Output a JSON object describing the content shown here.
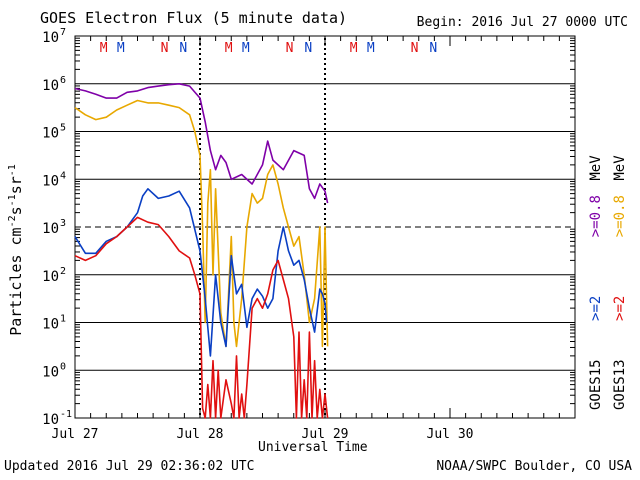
{
  "title": "GOES Electron Flux (5 minute data)",
  "begin_label": "Begin: 2016 Jul 27 0000 UTC",
  "updated_label": "Updated 2016 Jul 29 02:36:02 UTC",
  "credit": "NOAA/SWPC Boulder, CO USA",
  "colors": {
    "goes15_08": "#7f00a8",
    "goes13_08": "#e8a800",
    "goes15_2": "#0a3fc4",
    "goes13_2": "#e01010",
    "marker_m": "#e01010",
    "marker_n_red": "#e01010",
    "marker_blue": "#0a3fc4"
  },
  "chart_data": {
    "type": "line",
    "title": "GOES Electron Flux (5 minute data)",
    "xlabel": "Universal Time",
    "ylabel_base": "Particles cm",
    "ylabel_exps": [
      "-2",
      "-1",
      "-1"
    ],
    "ylabel_units": [
      "s",
      "sr"
    ],
    "y_scale": "log",
    "ylim_exp": [
      -1,
      7
    ],
    "xlim_hours": [
      0,
      96
    ],
    "x_ticks": [
      {
        "label": "Jul 27",
        "hours": 0
      },
      {
        "label": "Jul 28",
        "hours": 24
      },
      {
        "label": "Jul 29",
        "hours": 48
      },
      {
        "label": "Jul 30",
        "hours": 72
      }
    ],
    "y_ticks": [
      {
        "base": "10",
        "exp": "-1",
        "value_exp": -1
      },
      {
        "base": "10",
        "exp": "0",
        "value_exp": 0
      },
      {
        "base": "10",
        "exp": "1",
        "value_exp": 1
      },
      {
        "base": "10",
        "exp": "2",
        "value_exp": 2
      },
      {
        "base": "10",
        "exp": "3",
        "value_exp": 3
      },
      {
        "base": "10",
        "exp": "4",
        "value_exp": 4
      },
      {
        "base": "10",
        "exp": "5",
        "value_exp": 5
      },
      {
        "base": "10",
        "exp": "6",
        "value_exp": 6
      },
      {
        "base": "10",
        "exp": "7",
        "value_exp": 7
      }
    ],
    "threshold_exp": 3,
    "day_boundaries_hours": [
      24,
      48
    ],
    "markers": [
      {
        "label": "M",
        "hours": 5.5,
        "color": "marker_m"
      },
      {
        "label": "M",
        "hours": 8.8,
        "color": "marker_blue"
      },
      {
        "label": "N",
        "hours": 17.2,
        "color": "marker_n_red"
      },
      {
        "label": "N",
        "hours": 20.8,
        "color": "marker_blue"
      },
      {
        "label": "M",
        "hours": 29.5,
        "color": "marker_m"
      },
      {
        "label": "M",
        "hours": 32.8,
        "color": "marker_blue"
      },
      {
        "label": "N",
        "hours": 41.2,
        "color": "marker_n_red"
      },
      {
        "label": "N",
        "hours": 44.8,
        "color": "marker_blue"
      },
      {
        "label": "M",
        "hours": 53.5,
        "color": "marker_m"
      },
      {
        "label": "M",
        "hours": 56.8,
        "color": "marker_blue"
      },
      {
        "label": "N",
        "hours": 65.2,
        "color": "marker_n_red"
      },
      {
        "label": "N",
        "hours": 68.8,
        "color": "marker_blue"
      }
    ],
    "legend_goes15": {
      "satellite": "GOES15",
      "e2": ">=2",
      "e08": ">=0.8",
      "unit": "MeV"
    },
    "legend_goes13": {
      "satellite": "GOES13",
      "e2": ">=2",
      "e08": ">=0.8",
      "unit": "MeV"
    },
    "series": [
      {
        "name": "GOES15 >=0.8 MeV",
        "color": "goes15_08",
        "hours": [
          0,
          2,
          4,
          6,
          8,
          10,
          12,
          14,
          16,
          18,
          20,
          22,
          24,
          25,
          26,
          27,
          28,
          29,
          30,
          32,
          34,
          36,
          37,
          38,
          40,
          42,
          44,
          45,
          46,
          47,
          48,
          48.5
        ],
        "log_values": [
          5.9,
          5.85,
          5.78,
          5.7,
          5.7,
          5.82,
          5.85,
          5.92,
          5.95,
          5.98,
          6.0,
          5.95,
          5.7,
          5.2,
          4.6,
          4.2,
          4.5,
          4.35,
          4.0,
          4.1,
          3.9,
          4.3,
          4.8,
          4.4,
          4.2,
          4.6,
          4.5,
          3.8,
          3.6,
          3.9,
          3.75,
          3.5
        ]
      },
      {
        "name": "GOES13 >=0.8 MeV",
        "color": "goes13_08",
        "hours": [
          0,
          2,
          4,
          6,
          8,
          10,
          12,
          14,
          16,
          18,
          20,
          22,
          23,
          24,
          24.5,
          25,
          25.5,
          26,
          26.5,
          27,
          28,
          29,
          30,
          30.5,
          31,
          32,
          33,
          34,
          35,
          36,
          37,
          38,
          39,
          40,
          41,
          42,
          43,
          44,
          45,
          46,
          47,
          47.5,
          48,
          48.5
        ],
        "log_values": [
          5.5,
          5.35,
          5.25,
          5.3,
          5.45,
          5.55,
          5.65,
          5.6,
          5.6,
          5.55,
          5.5,
          5.35,
          5.0,
          4.5,
          3.0,
          1.0,
          3.5,
          4.2,
          2.0,
          3.8,
          1.2,
          0.5,
          2.8,
          1.0,
          0.5,
          1.5,
          3.0,
          3.7,
          3.5,
          3.6,
          4.1,
          4.3,
          3.9,
          3.4,
          3.0,
          2.6,
          2.8,
          2.0,
          1.0,
          1.5,
          3.0,
          0.5,
          3.0,
          0.5
        ]
      },
      {
        "name": "GOES15 >=2 MeV",
        "color": "goes15_2",
        "hours": [
          0,
          2,
          4,
          6,
          8,
          10,
          12,
          13,
          14,
          16,
          18,
          20,
          22,
          24,
          25,
          26,
          27,
          28,
          29,
          30,
          31,
          32,
          33,
          34,
          35,
          36,
          37,
          38,
          39,
          40,
          41,
          42,
          43,
          44,
          45,
          46,
          47,
          47.5,
          48,
          48.3
        ],
        "log_values": [
          2.8,
          2.45,
          2.45,
          2.7,
          2.8,
          3.0,
          3.3,
          3.65,
          3.8,
          3.6,
          3.65,
          3.75,
          3.4,
          2.5,
          1.5,
          0.3,
          2.0,
          1.0,
          0.5,
          2.4,
          1.6,
          1.8,
          0.9,
          1.5,
          1.7,
          1.55,
          1.3,
          1.5,
          2.5,
          3.0,
          2.5,
          2.2,
          2.3,
          1.9,
          1.3,
          0.8,
          1.7,
          1.6,
          1.4,
          1.0
        ]
      },
      {
        "name": "GOES13 >=2 MeV",
        "color": "goes13_2",
        "hours": [
          0,
          2,
          4,
          6,
          8,
          10,
          12,
          14,
          16,
          18,
          20,
          22,
          23,
          24,
          24.5,
          25,
          25.5,
          26,
          26.5,
          27,
          27.5,
          28,
          29,
          30,
          30.5,
          31,
          31.5,
          32,
          32.5,
          33,
          34,
          35,
          36,
          37,
          38,
          39,
          40,
          41,
          42,
          42.5,
          43,
          43.5,
          44,
          44.5,
          45,
          45.5,
          46,
          46.5,
          47,
          47.5,
          48,
          48.5
        ],
        "log_values": [
          2.4,
          2.3,
          2.4,
          2.65,
          2.8,
          3.0,
          3.2,
          3.1,
          3.05,
          2.8,
          2.5,
          2.35,
          2.0,
          1.6,
          -0.8,
          -1.0,
          -0.3,
          -1.0,
          0.2,
          -1.0,
          0.0,
          -1.0,
          -0.2,
          -0.7,
          -1.0,
          0.3,
          -1.0,
          -0.5,
          -1.0,
          -0.3,
          1.3,
          1.5,
          1.3,
          1.6,
          2.1,
          2.3,
          1.9,
          1.5,
          0.7,
          -1.0,
          0.8,
          -1.0,
          -0.2,
          -1.0,
          0.8,
          -1.0,
          0.2,
          -1.0,
          -0.4,
          -1.0,
          -0.5,
          -1.0
        ]
      }
    ]
  }
}
